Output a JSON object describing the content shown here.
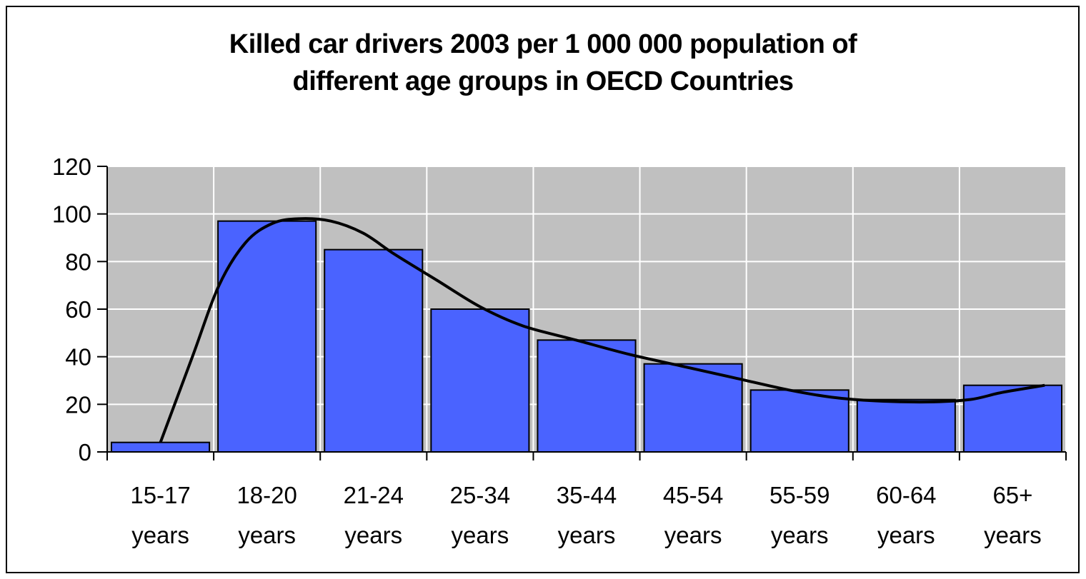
{
  "chart_data": {
    "type": "bar",
    "title_lines": [
      "Killed car drivers 2003 per 1 000 000 population of",
      "different age groups in OECD Countries"
    ],
    "categories": [
      [
        "15-17",
        "years"
      ],
      [
        "18-20",
        "years"
      ],
      [
        "21-24",
        "years"
      ],
      [
        "25-34",
        "years"
      ],
      [
        "35-44",
        "years"
      ],
      [
        "45-54",
        "years"
      ],
      [
        "55-59",
        "years"
      ],
      [
        "60-64",
        "years"
      ],
      [
        "65+",
        "years"
      ]
    ],
    "values": [
      4,
      97,
      85,
      60,
      47,
      37,
      26,
      22,
      28
    ],
    "trend_curve": [
      [
        0.0,
        4
      ],
      [
        0.3,
        40
      ],
      [
        0.55,
        70
      ],
      [
        0.8,
        88
      ],
      [
        1.05,
        96
      ],
      [
        1.3,
        98
      ],
      [
        1.6,
        97
      ],
      [
        1.9,
        92
      ],
      [
        2.2,
        83
      ],
      [
        2.6,
        72
      ],
      [
        3.0,
        61
      ],
      [
        3.4,
        53
      ],
      [
        3.9,
        47
      ],
      [
        4.4,
        41
      ],
      [
        4.9,
        36
      ],
      [
        5.4,
        31
      ],
      [
        5.9,
        26
      ],
      [
        6.3,
        23
      ],
      [
        6.7,
        21.5
      ],
      [
        7.2,
        21
      ],
      [
        7.6,
        22
      ],
      [
        7.9,
        25
      ],
      [
        8.3,
        28
      ]
    ],
    "ylim": [
      0,
      120
    ],
    "yticks": [
      0,
      20,
      40,
      60,
      80,
      100,
      120
    ],
    "grid": true,
    "colors": {
      "bar": "#4A63FF",
      "bar_edge": "#000000",
      "plot_bg": "#C0C0C0",
      "grid": "#FFFFFF",
      "trend": "#000000"
    }
  }
}
